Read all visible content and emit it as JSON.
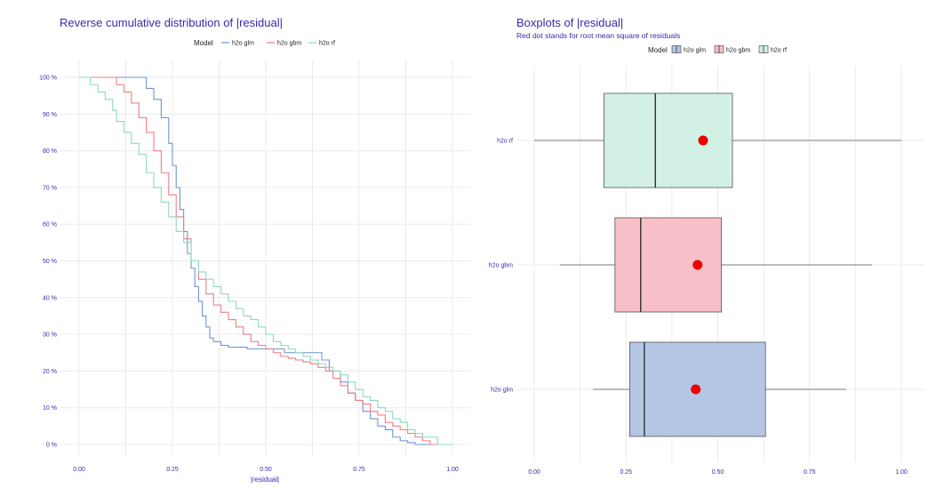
{
  "colors": {
    "text_accent": "#3a2aa8",
    "h2o_glm": "#6f93d6",
    "h2o_gbm": "#ee7f86",
    "h2o_rf": "#8fd9bd",
    "glm_fill": "#b4c6e4",
    "gbm_fill": "#f7bfc7",
    "rf_fill": "#d2f0e4",
    "rmse_dot": "#ee0000"
  },
  "chart_data": [
    {
      "type": "line",
      "title": "Reverse cumulative distribution of |residual|",
      "xlabel": "|residual|",
      "ylabel": "",
      "xlim": [
        0,
        1
      ],
      "ylim": [
        0,
        1
      ],
      "xticks": [
        0,
        0.25,
        0.5,
        0.75,
        1
      ],
      "xtick_labels": [
        "0.00",
        "0.25",
        "0.50",
        "0.75",
        "1.00"
      ],
      "yticks": [
        0,
        0.1,
        0.2,
        0.3,
        0.4,
        0.5,
        0.6,
        0.7,
        0.8,
        0.9,
        1.0
      ],
      "ytick_labels": [
        "0 %",
        "10 %",
        "20 %",
        "30 %",
        "40 %",
        "50 %",
        "60 %",
        "70 %",
        "80 %",
        "90 %",
        "100 %"
      ],
      "grid": true,
      "legend": {
        "title": "Model",
        "placement": "top"
      },
      "series": [
        {
          "name": "h2o glm",
          "color_key": "h2o_glm",
          "x": [
            0.0,
            0.16,
            0.18,
            0.2,
            0.22,
            0.24,
            0.25,
            0.26,
            0.27,
            0.28,
            0.29,
            0.3,
            0.31,
            0.32,
            0.33,
            0.34,
            0.35,
            0.36,
            0.38,
            0.4,
            0.45,
            0.5,
            0.55,
            0.6,
            0.63,
            0.65,
            0.67,
            0.7,
            0.72,
            0.74,
            0.76,
            0.78,
            0.8,
            0.82,
            0.84,
            0.86,
            0.88,
            0.9,
            1.0
          ],
          "y": [
            1.0,
            1.0,
            0.97,
            0.94,
            0.89,
            0.82,
            0.76,
            0.7,
            0.64,
            0.58,
            0.52,
            0.48,
            0.43,
            0.39,
            0.35,
            0.32,
            0.29,
            0.28,
            0.27,
            0.265,
            0.26,
            0.26,
            0.25,
            0.25,
            0.25,
            0.23,
            0.2,
            0.17,
            0.14,
            0.12,
            0.09,
            0.07,
            0.05,
            0.04,
            0.02,
            0.01,
            0.005,
            0.0,
            0.0
          ]
        },
        {
          "name": "h2o gbm",
          "color_key": "h2o_gbm",
          "x": [
            0.0,
            0.07,
            0.1,
            0.12,
            0.14,
            0.16,
            0.18,
            0.2,
            0.22,
            0.24,
            0.26,
            0.28,
            0.3,
            0.32,
            0.34,
            0.36,
            0.38,
            0.4,
            0.42,
            0.44,
            0.46,
            0.48,
            0.5,
            0.52,
            0.54,
            0.56,
            0.58,
            0.6,
            0.62,
            0.64,
            0.66,
            0.68,
            0.7,
            0.72,
            0.74,
            0.76,
            0.78,
            0.8,
            0.82,
            0.84,
            0.86,
            0.88,
            0.9,
            0.92,
            0.94,
            1.0
          ],
          "y": [
            1.0,
            1.0,
            0.98,
            0.96,
            0.93,
            0.89,
            0.85,
            0.8,
            0.74,
            0.68,
            0.62,
            0.56,
            0.5,
            0.45,
            0.41,
            0.38,
            0.36,
            0.34,
            0.32,
            0.3,
            0.28,
            0.27,
            0.26,
            0.25,
            0.24,
            0.235,
            0.23,
            0.225,
            0.22,
            0.21,
            0.2,
            0.18,
            0.16,
            0.14,
            0.12,
            0.11,
            0.09,
            0.08,
            0.06,
            0.05,
            0.04,
            0.03,
            0.02,
            0.01,
            0.0,
            0.0
          ]
        },
        {
          "name": "h2o rf",
          "color_key": "h2o_rf",
          "x": [
            0.0,
            0.03,
            0.05,
            0.07,
            0.09,
            0.1,
            0.12,
            0.14,
            0.16,
            0.18,
            0.2,
            0.22,
            0.24,
            0.26,
            0.28,
            0.3,
            0.32,
            0.34,
            0.36,
            0.38,
            0.4,
            0.42,
            0.44,
            0.46,
            0.48,
            0.5,
            0.52,
            0.54,
            0.56,
            0.58,
            0.6,
            0.62,
            0.64,
            0.66,
            0.68,
            0.7,
            0.72,
            0.74,
            0.76,
            0.78,
            0.8,
            0.82,
            0.84,
            0.86,
            0.88,
            0.9,
            0.92,
            0.96,
            1.0
          ],
          "y": [
            1.0,
            0.98,
            0.96,
            0.94,
            0.91,
            0.88,
            0.85,
            0.82,
            0.79,
            0.74,
            0.7,
            0.66,
            0.62,
            0.58,
            0.55,
            0.5,
            0.47,
            0.45,
            0.43,
            0.41,
            0.39,
            0.37,
            0.35,
            0.34,
            0.32,
            0.3,
            0.28,
            0.27,
            0.26,
            0.25,
            0.24,
            0.23,
            0.22,
            0.21,
            0.2,
            0.19,
            0.17,
            0.15,
            0.13,
            0.12,
            0.1,
            0.09,
            0.07,
            0.06,
            0.04,
            0.03,
            0.02,
            0.0,
            0.0
          ]
        }
      ]
    },
    {
      "type": "boxplot",
      "title": "Boxplots of |residual|",
      "subtitle": "Red dot stands for root mean square of residuals",
      "xlabel": "",
      "ylabel": "",
      "xlim": [
        0,
        1
      ],
      "xticks": [
        0,
        0.25,
        0.5,
        0.75,
        1
      ],
      "xtick_labels": [
        "0.00",
        "0.25",
        "0.50",
        "0.75",
        "1.00"
      ],
      "grid": true,
      "legend": {
        "title": "Model",
        "placement": "top"
      },
      "series": [
        {
          "name": "h2o rf",
          "fill_key": "rf_fill",
          "min": 0.0,
          "q1": 0.19,
          "median": 0.33,
          "q3": 0.54,
          "max": 1.0,
          "rmse": 0.46
        },
        {
          "name": "h2o gbm",
          "fill_key": "gbm_fill",
          "min": 0.07,
          "q1": 0.22,
          "median": 0.29,
          "q3": 0.51,
          "max": 0.92,
          "rmse": 0.445
        },
        {
          "name": "h2o glm",
          "fill_key": "glm_fill",
          "min": 0.16,
          "q1": 0.26,
          "median": 0.3,
          "q3": 0.63,
          "max": 0.85,
          "rmse": 0.44
        }
      ]
    }
  ]
}
